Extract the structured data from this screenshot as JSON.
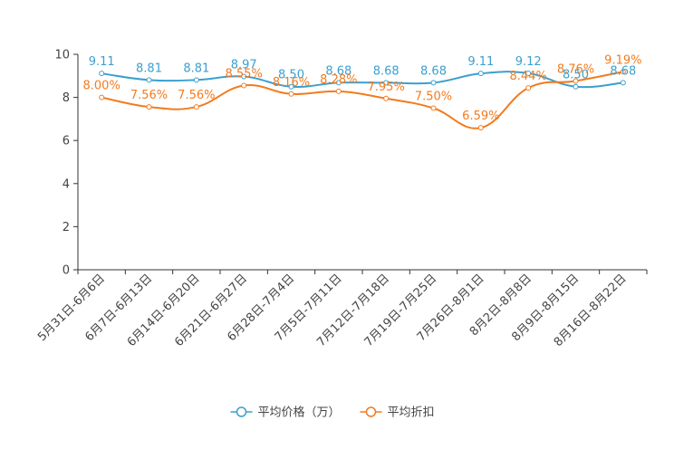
{
  "chart_data": {
    "type": "line",
    "title": "",
    "xlabel": "",
    "ylabel": "",
    "ylim": [
      0,
      10
    ],
    "yticks": [
      0,
      2,
      4,
      6,
      8,
      10
    ],
    "categories": [
      "5月31日-6月6日",
      "6月7日-6月13日",
      "6月14日-6月20日",
      "6月21日-6月27日",
      "6月28日-7月4日",
      "7月5日-7月11日",
      "7月12日-7月18日",
      "7月19日-7月25日",
      "7月26日-8月1日",
      "8月2日-8月8日",
      "8月9日-8月15日",
      "8月16日-8月22日"
    ],
    "series": [
      {
        "name": "平均价格（万）",
        "color": "#3b9fce",
        "values": [
          9.11,
          8.81,
          8.81,
          8.97,
          8.5,
          8.68,
          8.68,
          8.68,
          9.11,
          9.12,
          8.5,
          8.68
        ],
        "labels": [
          "9.11",
          "8.81",
          "8.81",
          "8.97",
          "8.50",
          "8.68",
          "8.68",
          "8.68",
          "9.11",
          "9.12",
          "8.50",
          "8.68"
        ]
      },
      {
        "name": "平均折扣",
        "color": "#f27b1f",
        "values": [
          8.0,
          7.56,
          7.56,
          8.55,
          8.16,
          8.28,
          7.95,
          7.5,
          6.59,
          8.44,
          8.76,
          9.19
        ],
        "labels": [
          "8.00%",
          "7.56%",
          "7.56%",
          "8.55%",
          "8.16%",
          "8.28%",
          "7.95%",
          "7.50%",
          "6.59%",
          "8.44%",
          "8.76%",
          "9.19%"
        ]
      }
    ],
    "legend_position": "bottom-center",
    "grid": false
  }
}
